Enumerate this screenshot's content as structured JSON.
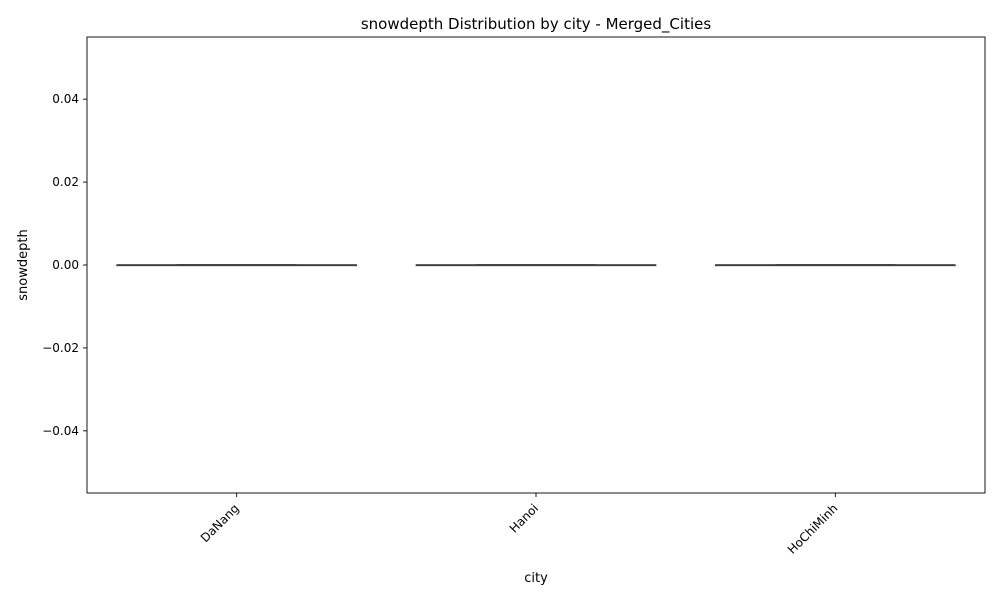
{
  "chart_data": {
    "type": "box",
    "title": "snowdepth Distribution by city - Merged_Cities",
    "xlabel": "city",
    "ylabel": "snowdepth",
    "categories": [
      "DaNang",
      "Hanoi",
      "HoChiMinh"
    ],
    "boxes": [
      {
        "category": "DaNang",
        "min": 0,
        "q1": 0,
        "median": 0,
        "q3": 0,
        "max": 0
      },
      {
        "category": "Hanoi",
        "min": 0,
        "q1": 0,
        "median": 0,
        "q3": 0,
        "max": 0
      },
      {
        "category": "HoChiMinh",
        "min": 0,
        "q1": 0,
        "median": 0,
        "q3": 0,
        "max": 0
      }
    ],
    "ylim": [
      -0.055,
      0.055
    ],
    "yticks": [
      -0.04,
      -0.02,
      0.0,
      0.02,
      0.04
    ],
    "ytick_labels": [
      "−0.04",
      "−0.02",
      "0.00",
      "0.02",
      "0.04"
    ],
    "grid": false,
    "legend": "none",
    "colors": {
      "box_line": "#3f3f3f",
      "axes": "#000000"
    }
  }
}
